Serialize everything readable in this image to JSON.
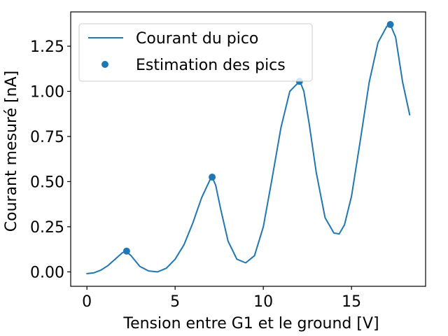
{
  "chart_data": {
    "type": "line",
    "xlabel": "Tension entre G1 et le ground [V]",
    "ylabel": "Courant mesuré [nA]",
    "xlim": [
      -0.92,
      19.2
    ],
    "ylim": [
      -0.08,
      1.44
    ],
    "xticks": [
      0,
      5,
      10,
      15
    ],
    "xtick_labels": [
      "0",
      "5",
      "10",
      "15"
    ],
    "yticks": [
      0.0,
      0.25,
      0.5,
      0.75,
      1.0,
      1.25
    ],
    "ytick_labels": [
      "0.00",
      "0.25",
      "0.50",
      "0.75",
      "1.00",
      "1.25"
    ],
    "grid": false,
    "legend": "upper left",
    "colors": {
      "series": "#1f77b4"
    },
    "series": [
      {
        "name": "Courant du pico",
        "kind": "line",
        "x": [
          0.0,
          0.4,
          0.8,
          1.2,
          1.6,
          2.0,
          2.2,
          2.5,
          3.0,
          3.5,
          4.0,
          4.5,
          5.0,
          5.5,
          6.0,
          6.5,
          7.0,
          7.1,
          7.3,
          7.6,
          8.0,
          8.5,
          9.0,
          9.5,
          10.0,
          10.5,
          11.0,
          11.5,
          12.0,
          12.1,
          12.3,
          12.6,
          13.0,
          13.5,
          14.0,
          14.3,
          14.6,
          15.0,
          15.5,
          16.0,
          16.5,
          17.0,
          17.2,
          17.5,
          17.9,
          18.3
        ],
        "y": [
          -0.01,
          -0.005,
          0.01,
          0.035,
          0.07,
          0.105,
          0.115,
          0.09,
          0.03,
          0.005,
          0.0,
          0.02,
          0.07,
          0.15,
          0.27,
          0.41,
          0.515,
          0.525,
          0.48,
          0.34,
          0.17,
          0.07,
          0.05,
          0.09,
          0.25,
          0.52,
          0.8,
          1.0,
          1.05,
          1.05,
          1.0,
          0.82,
          0.55,
          0.3,
          0.215,
          0.21,
          0.26,
          0.42,
          0.73,
          1.05,
          1.27,
          1.36,
          1.37,
          1.3,
          1.05,
          0.87
        ]
      },
      {
        "name": "Estimation des pics",
        "kind": "scatter",
        "x": [
          2.25,
          7.1,
          12.05,
          17.2
        ],
        "y": [
          0.115,
          0.525,
          1.055,
          1.37
        ]
      }
    ]
  }
}
